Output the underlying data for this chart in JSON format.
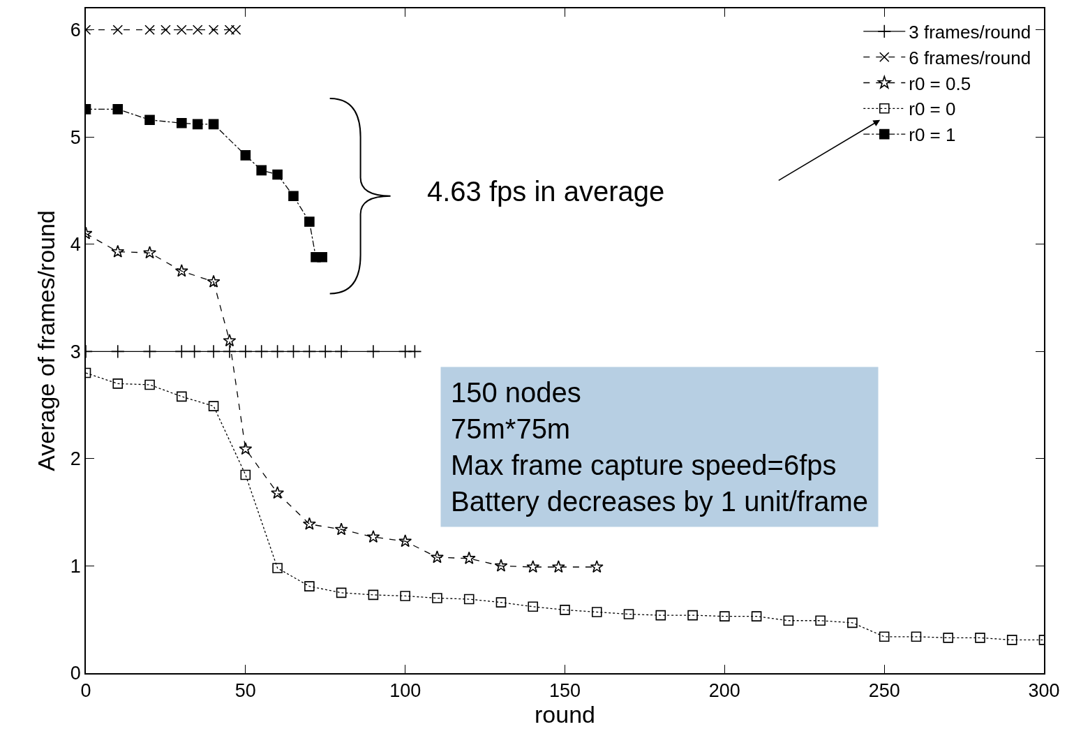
{
  "chart_data": {
    "type": "line",
    "xlabel": "round",
    "ylabel": "Average of frames/round",
    "xlim": [
      0,
      300
    ],
    "xticks": [
      0,
      50,
      100,
      150,
      200,
      250,
      300
    ],
    "ylim": [
      0,
      6.2
    ],
    "yticks": [
      0,
      1,
      2,
      3,
      4,
      5,
      6
    ],
    "legend": "top right",
    "series": [
      {
        "name": "3 frames/round",
        "color": "#000000",
        "marker": "cross",
        "line_style": "solid",
        "x": [
          0,
          10,
          20,
          30,
          34,
          40,
          45,
          50,
          55,
          60,
          65,
          70,
          75,
          80,
          90,
          100,
          103
        ],
        "values": [
          3,
          3,
          3,
          3,
          3,
          3,
          3,
          3,
          3,
          3,
          3,
          3,
          3,
          3,
          3,
          3,
          3
        ]
      },
      {
        "name": "6 frames/round",
        "color": "#000000",
        "marker": "x",
        "line_style": "dashed",
        "x": [
          0,
          10,
          20,
          25,
          30,
          35,
          40,
          45,
          47
        ],
        "values": [
          6,
          6,
          6,
          6,
          6,
          6,
          6,
          6,
          6
        ]
      },
      {
        "name": "r0 = 0.5",
        "color": "#000000",
        "marker": "star",
        "line_style": "dashed",
        "x": [
          0,
          10,
          20,
          30,
          40,
          45,
          50,
          60,
          70,
          80,
          90,
          100,
          110,
          120,
          130,
          140,
          148,
          160
        ],
        "values": [
          4.1,
          3.93,
          3.92,
          3.75,
          3.65,
          3.1,
          2.09,
          1.68,
          1.39,
          1.34,
          1.27,
          1.23,
          1.08,
          1.07,
          1.0,
          0.99,
          0.99,
          0.99
        ]
      },
      {
        "name": "r0 = 0",
        "color": "#000000",
        "marker": "square-open",
        "line_style": "dotted",
        "x": [
          0,
          10,
          20,
          30,
          40,
          50,
          60,
          70,
          80,
          90,
          100,
          110,
          120,
          130,
          140,
          150,
          160,
          170,
          180,
          190,
          200,
          210,
          220,
          230,
          240,
          250,
          260,
          270,
          280,
          290,
          300
        ],
        "values": [
          2.8,
          2.7,
          2.69,
          2.58,
          2.49,
          1.85,
          0.98,
          0.81,
          0.75,
          0.73,
          0.72,
          0.7,
          0.69,
          0.66,
          0.62,
          0.59,
          0.57,
          0.55,
          0.54,
          0.54,
          0.53,
          0.53,
          0.49,
          0.49,
          0.47,
          0.34,
          0.34,
          0.33,
          0.33,
          0.31,
          0.31
        ]
      },
      {
        "name": "r0 = 1",
        "color": "#000000",
        "marker": "square",
        "line_style": "dashdot",
        "x": [
          0,
          10,
          20,
          30,
          35,
          40,
          50,
          55,
          60,
          65,
          70,
          72,
          74
        ],
        "values": [
          5.26,
          5.26,
          5.16,
          5.13,
          5.12,
          5.12,
          4.83,
          4.69,
          4.65,
          4.45,
          4.21,
          3.88,
          3.88
        ]
      }
    ],
    "annotations": [
      "4.63 fps in average",
      "150 nodes\n75m*75m\nMax frame capture speed=6fps\nBattery decreases by 1 unit/frame"
    ]
  }
}
